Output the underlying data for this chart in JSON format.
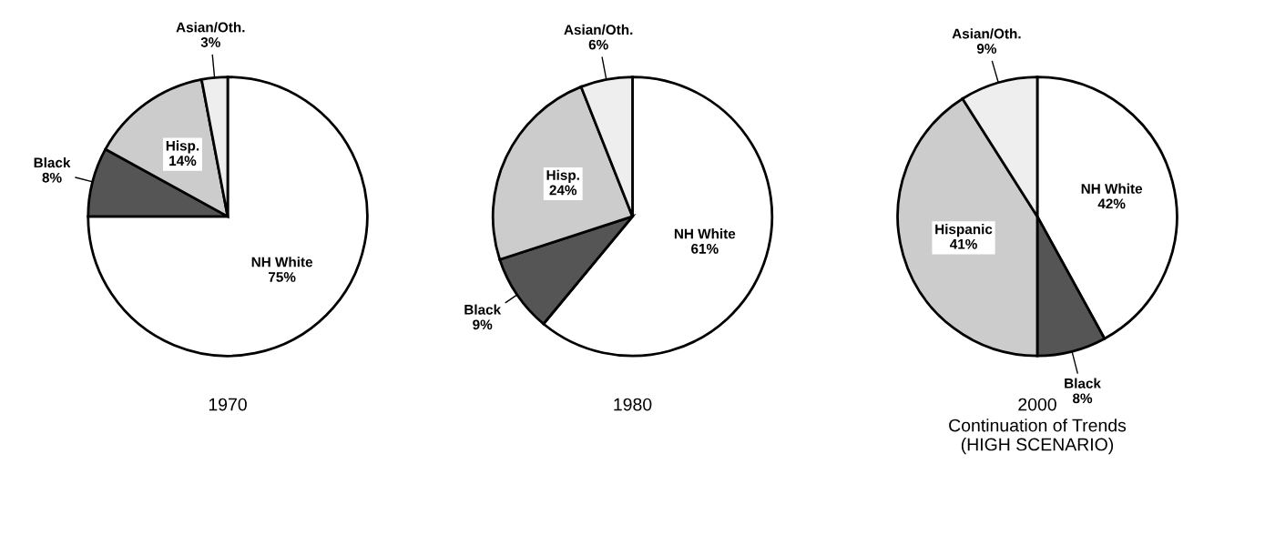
{
  "chart_data": [
    {
      "type": "pie",
      "title": "1970",
      "categories": [
        "NH White",
        "Black",
        "Hisp.",
        "Asian/Oth."
      ],
      "values": [
        75,
        8,
        14,
        3
      ],
      "value_labels": [
        "75%",
        "8%",
        "14%",
        "3%"
      ],
      "colors": [
        "#ffffff",
        "#555555",
        "#cccccc",
        "#eeeeee"
      ]
    },
    {
      "type": "pie",
      "title": "1980",
      "categories": [
        "NH White",
        "Black",
        "Hisp.",
        "Asian/Oth."
      ],
      "values": [
        61,
        9,
        24,
        6
      ],
      "value_labels": [
        "61%",
        "9%",
        "24%",
        "6%"
      ],
      "colors": [
        "#ffffff",
        "#555555",
        "#cccccc",
        "#eeeeee"
      ]
    },
    {
      "type": "pie",
      "title": "2000",
      "subtitle": "Continuation of Trends\n(HIGH SCENARIO)",
      "categories": [
        "NH White",
        "Black",
        "Hispanic",
        "Asian/Oth."
      ],
      "values": [
        42,
        8,
        41,
        9
      ],
      "value_labels": [
        "42%",
        "8%",
        "41%",
        "9%"
      ],
      "colors": [
        "#ffffff",
        "#555555",
        "#cccccc",
        "#eeeeee"
      ]
    }
  ]
}
